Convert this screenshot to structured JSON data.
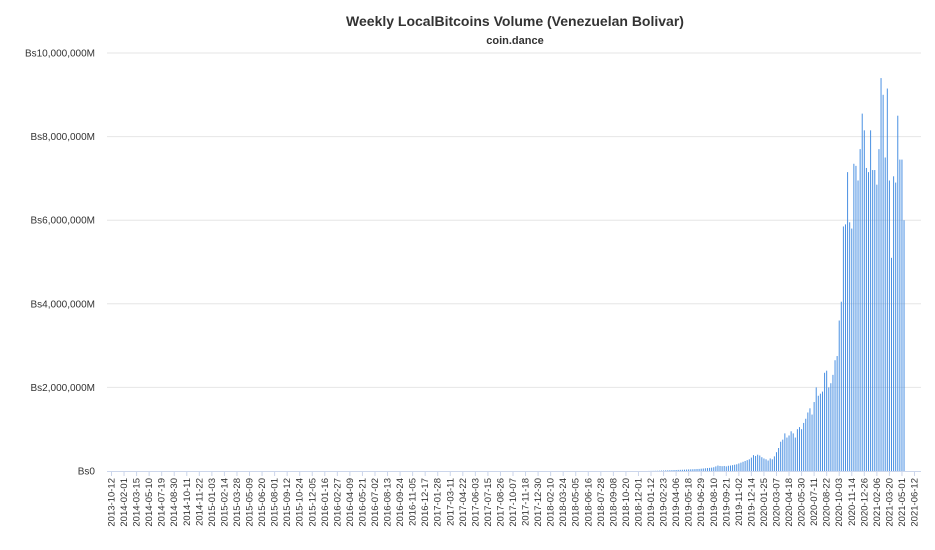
{
  "chart_data": {
    "type": "bar",
    "title": "Weekly LocalBitcoins Volume (Venezuelan Bolivar)",
    "subtitle": "coin.dance",
    "xlabel": "",
    "ylabel": "",
    "y_tick_labels": [
      "Bs0",
      "Bs2,000,000M",
      "Bs4,000,000M",
      "Bs6,000,000M",
      "Bs8,000,000M",
      "Bs10,000,000M"
    ],
    "y_tick_values": [
      0,
      2000000,
      4000000,
      6000000,
      8000000,
      10000000
    ],
    "value_unit": "millions of Bs",
    "ylim": [
      0,
      10000000
    ],
    "grid": true,
    "bar_color": "#4a90e2",
    "x_tick_labels": [
      "2013-10-12",
      "2014-02-01",
      "2014-03-15",
      "2014-05-10",
      "2014-07-19",
      "2014-08-30",
      "2014-10-11",
      "2014-11-22",
      "2015-01-03",
      "2015-02-14",
      "2015-03-28",
      "2015-05-09",
      "2015-06-20",
      "2015-08-01",
      "2015-09-12",
      "2015-10-24",
      "2015-12-05",
      "2016-01-16",
      "2016-02-27",
      "2016-04-09",
      "2016-05-21",
      "2016-07-02",
      "2016-08-13",
      "2016-09-24",
      "2016-11-05",
      "2016-12-17",
      "2017-01-28",
      "2017-03-11",
      "2017-04-22",
      "2017-06-03",
      "2017-07-15",
      "2017-08-26",
      "2017-10-07",
      "2017-11-18",
      "2017-12-30",
      "2018-02-10",
      "2018-03-24",
      "2018-05-05",
      "2018-06-16",
      "2018-07-28",
      "2018-09-08",
      "2018-10-20",
      "2018-12-01",
      "2019-01-12",
      "2019-02-23",
      "2019-04-06",
      "2019-05-18",
      "2019-06-29",
      "2019-08-10",
      "2019-09-21",
      "2019-11-02",
      "2019-12-14",
      "2020-01-25",
      "2020-03-07",
      "2020-04-18",
      "2020-05-30",
      "2020-07-11",
      "2020-08-22",
      "2020-10-03",
      "2020-11-14",
      "2020-12-26",
      "2021-02-06",
      "2021-03-20",
      "2021-05-01",
      "2021-06-12"
    ],
    "weekly_values_from_2019-01-05": [
      2000,
      3000,
      4000,
      5000,
      6000,
      8000,
      10000,
      12000,
      14000,
      16000,
      18000,
      20000,
      22000,
      24000,
      26000,
      28000,
      30000,
      32000,
      35000,
      38000,
      40000,
      42000,
      45000,
      48000,
      50000,
      55000,
      60000,
      65000,
      70000,
      75000,
      80000,
      90000,
      110000,
      130000,
      120000,
      115000,
      120000,
      110000,
      125000,
      130000,
      140000,
      150000,
      160000,
      180000,
      200000,
      220000,
      240000,
      260000,
      280000,
      320000,
      380000,
      360000,
      390000,
      370000,
      330000,
      300000,
      280000,
      250000,
      300000,
      280000,
      350000,
      450000,
      550000,
      700000,
      750000,
      900000,
      800000,
      850000,
      950000,
      900000,
      800000,
      1000000,
      1050000,
      1000000,
      1150000,
      1250000,
      1400000,
      1500000,
      1350000,
      1650000,
      2000000,
      1800000,
      1850000,
      1900000,
      2350000,
      2400000,
      2000000,
      2100000,
      2300000,
      2650000,
      2750000,
      3600000,
      4050000,
      5850000,
      5900000,
      7150000,
      5950000,
      5800000,
      7350000,
      7300000,
      6950000,
      7700000,
      8550000,
      8150000,
      7250000,
      7150000,
      8150000,
      7200000,
      7200000,
      6850000,
      7700000,
      9400000,
      9000000,
      7500000,
      9150000,
      6950000,
      5100000,
      7050000,
      6900000,
      8500000,
      7450000,
      7450000,
      6000000
    ]
  }
}
